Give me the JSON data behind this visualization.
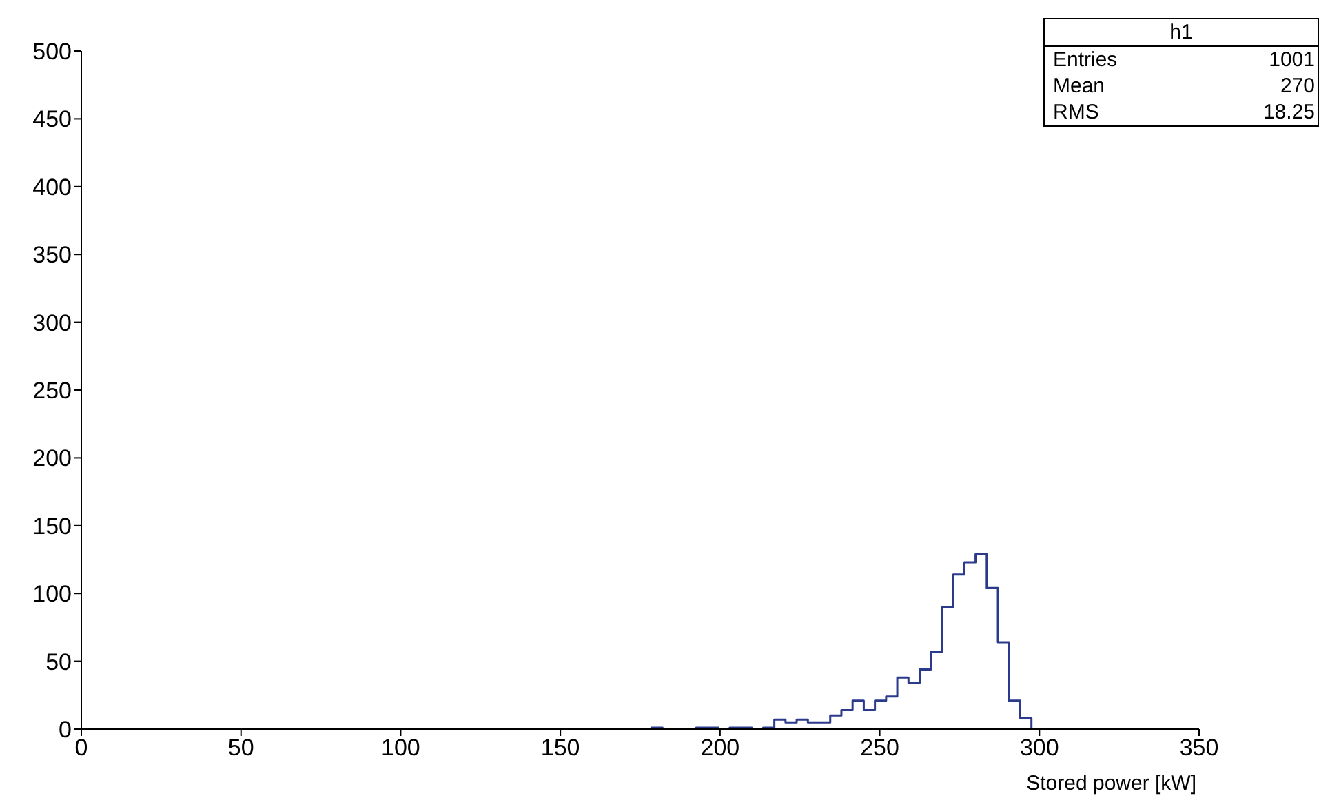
{
  "chart_data": {
    "type": "histogram",
    "xlabel": "Stored power [kW]",
    "bins": [
      0,
      3.5,
      7,
      10.5,
      14,
      17.5,
      21,
      24.5,
      28,
      31.5,
      35,
      38.5,
      42,
      45.5,
      49,
      52.5,
      56,
      59.5,
      63,
      66.5,
      70,
      73.5,
      77,
      80.5,
      84,
      87.5,
      91,
      94.5,
      98,
      101.5,
      105,
      108.5,
      112,
      115.5,
      119,
      122.5,
      126,
      129.5,
      133,
      136.5,
      140,
      143.5,
      147,
      150.5,
      154,
      157.5,
      161,
      164.5,
      168,
      171.5,
      175,
      178.5,
      182,
      185.5,
      189,
      192.5,
      196,
      199.5,
      203,
      206.5,
      210,
      213.5,
      217,
      220.5,
      224,
      227.5,
      231,
      234.5,
      238,
      241.5,
      245,
      248.5,
      252,
      255.5,
      259,
      262.5,
      266,
      269.5,
      273,
      276.5,
      280,
      283.5,
      287,
      290.5,
      294,
      297.5,
      301,
      304.5,
      308,
      311.5,
      315,
      318.5,
      322,
      325.5,
      329,
      332.5,
      336,
      339.5,
      343,
      346.5,
      350
    ],
    "values": [
      0,
      0,
      0,
      0,
      0,
      0,
      0,
      0,
      0,
      0,
      0,
      0,
      0,
      0,
      0,
      0,
      0,
      0,
      0,
      0,
      0,
      0,
      0,
      0,
      0,
      0,
      0,
      0,
      0,
      0,
      0,
      0,
      0,
      0,
      0,
      0,
      0,
      0,
      0,
      0,
      0,
      0,
      0,
      0,
      0,
      0,
      0,
      0,
      0,
      0,
      0,
      1,
      0,
      0,
      0,
      1,
      1,
      0,
      1,
      1,
      0,
      1,
      7,
      5,
      7,
      5,
      5,
      10,
      14,
      21,
      14,
      21,
      24,
      38,
      34,
      44,
      57,
      90,
      114,
      123,
      129,
      104,
      64,
      21,
      8,
      0,
      0,
      0,
      0,
      0,
      0,
      0,
      0,
      0,
      0,
      0,
      0,
      0,
      0,
      0
    ],
    "color": "#2b3a8a",
    "xlim": [
      0,
      350
    ],
    "xticks": [
      0,
      50,
      100,
      150,
      200,
      250,
      300,
      350
    ],
    "ylim": [
      0,
      500
    ],
    "yticks": [
      0,
      50,
      100,
      150,
      200,
      250,
      300,
      350,
      400,
      450,
      500
    ],
    "grid": false,
    "annotations": [
      "h1",
      "Entries 1001",
      "Mean 270",
      "RMS 18.25"
    ]
  }
}
